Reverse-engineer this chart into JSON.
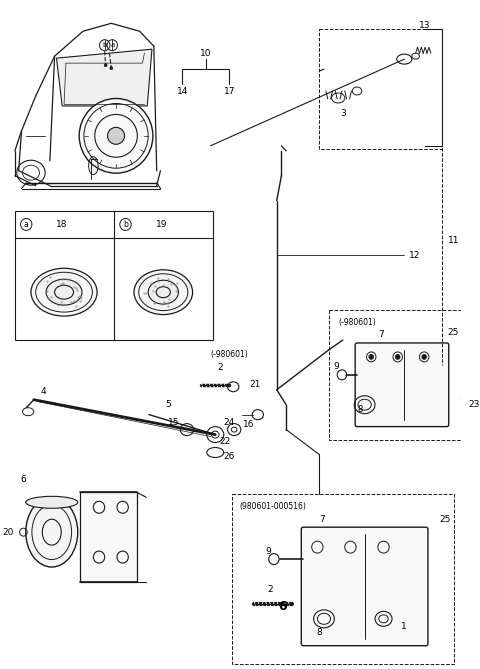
{
  "bg_color": "#ffffff",
  "line_color": "#1a1a1a",
  "text_color": "#000000",
  "fig_width": 4.8,
  "fig_height": 6.69,
  "dpi": 100,
  "labels": {
    "a_circle": "a",
    "b_circle": "b",
    "item3": "3",
    "item4": "4",
    "item5": "5",
    "item6": "6",
    "item7": "7",
    "item8": "8",
    "item9": "9",
    "item10": "10",
    "item11": "11",
    "item12": "12",
    "item13": "13",
    "item14": "14",
    "item15": "15",
    "item16": "16",
    "item17": "17",
    "item18": "18",
    "item19": "19",
    "item20": "20",
    "item21": "21",
    "item22": "22",
    "item23": "23",
    "item24": "24",
    "item25": "25",
    "item26": "26",
    "label_980601_neg": "(-980601)",
    "label_980601_pos": "(980601-000516)"
  }
}
